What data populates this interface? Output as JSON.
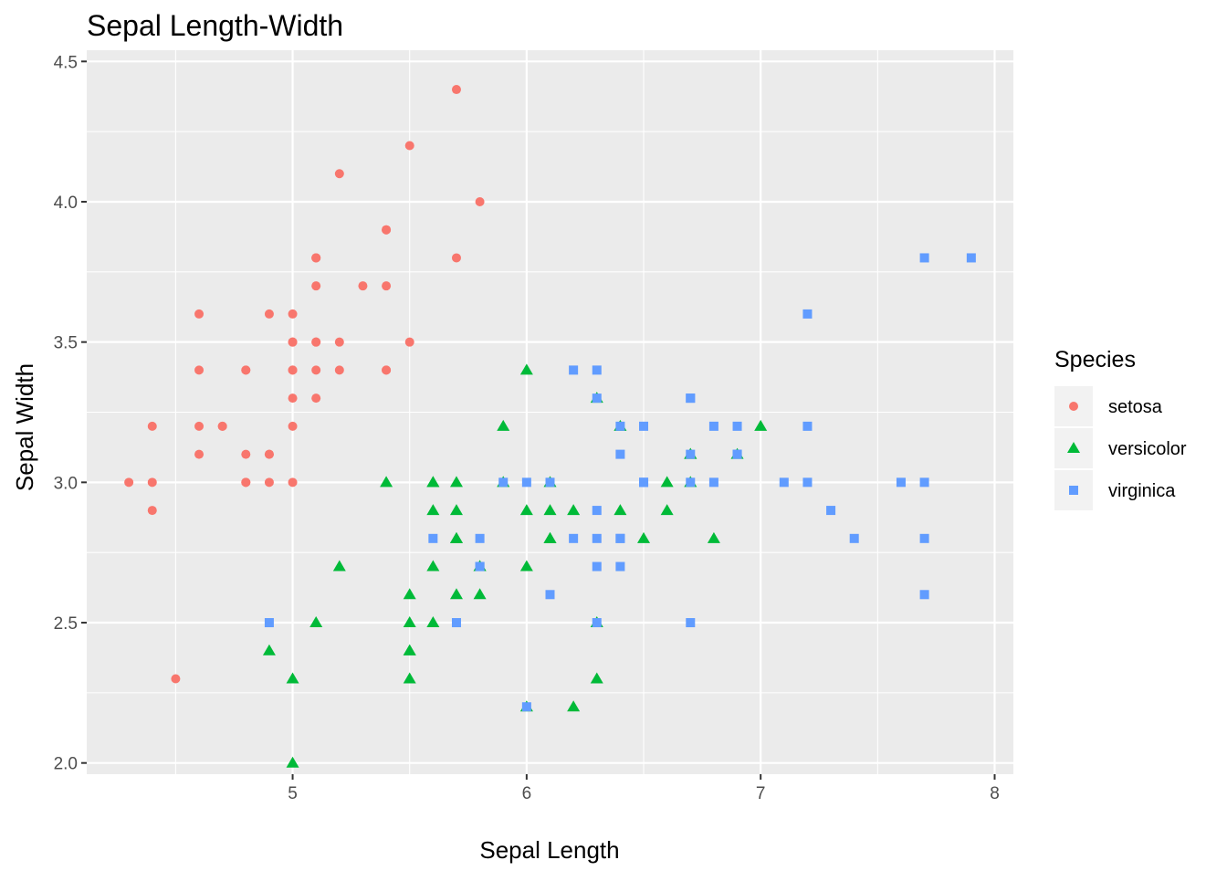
{
  "chart_data": {
    "type": "scatter",
    "title": "Sepal Length-Width",
    "xlabel": "Sepal Length",
    "ylabel": "Sepal Width",
    "xlim": [
      4.12,
      8.08
    ],
    "ylim": [
      1.96,
      4.54
    ],
    "xticks": [
      5,
      6,
      7,
      8
    ],
    "xtick_labels": [
      "5",
      "6",
      "7",
      "8"
    ],
    "yticks": [
      2.0,
      2.5,
      3.0,
      3.5,
      4.0,
      4.5
    ],
    "ytick_labels": [
      "2.0",
      "2.5",
      "3.0",
      "3.5",
      "4.0",
      "4.5"
    ],
    "grid": true,
    "background": "#EBEBEB",
    "legend": {
      "title": "Species",
      "placement": "right"
    },
    "series": [
      {
        "name": "setosa",
        "color": "#F8766D",
        "shape": "circle",
        "x": [
          5.1,
          4.9,
          4.7,
          4.6,
          5.0,
          5.4,
          4.6,
          5.0,
          4.4,
          4.9,
          5.4,
          4.8,
          4.8,
          4.3,
          5.8,
          5.7,
          5.4,
          5.1,
          5.7,
          5.1,
          5.4,
          5.1,
          4.6,
          5.1,
          4.8,
          5.0,
          5.0,
          5.2,
          5.2,
          4.7,
          4.8,
          5.4,
          5.2,
          5.5,
          4.9,
          5.0,
          5.5,
          4.9,
          4.4,
          5.1,
          5.0,
          4.5,
          4.4,
          5.0,
          5.1,
          4.8,
          5.1,
          4.6,
          5.3,
          5.0
        ],
        "y": [
          3.5,
          3.0,
          3.2,
          3.1,
          3.6,
          3.9,
          3.4,
          3.4,
          2.9,
          3.1,
          3.7,
          3.4,
          3.0,
          3.0,
          4.0,
          4.4,
          3.9,
          3.5,
          3.8,
          3.8,
          3.4,
          3.7,
          3.6,
          3.3,
          3.4,
          3.0,
          3.4,
          3.5,
          3.4,
          3.2,
          3.1,
          3.4,
          4.1,
          4.2,
          3.1,
          3.2,
          3.5,
          3.6,
          3.0,
          3.4,
          3.5,
          2.3,
          3.2,
          3.5,
          3.8,
          3.0,
          3.8,
          3.2,
          3.7,
          3.3
        ]
      },
      {
        "name": "versicolor",
        "color": "#00BA38",
        "shape": "triangle",
        "x": [
          7.0,
          6.4,
          6.9,
          5.5,
          6.5,
          5.7,
          6.3,
          4.9,
          6.6,
          5.2,
          5.0,
          5.9,
          6.0,
          6.1,
          5.6,
          6.7,
          5.6,
          5.8,
          6.2,
          5.6,
          5.9,
          6.1,
          6.3,
          6.1,
          6.4,
          6.6,
          6.8,
          6.7,
          6.0,
          5.7,
          5.5,
          5.5,
          5.8,
          6.0,
          5.4,
          6.0,
          6.7,
          6.3,
          5.6,
          5.5,
          5.5,
          6.1,
          5.8,
          5.0,
          5.6,
          5.7,
          5.7,
          6.2,
          5.1,
          5.7
        ],
        "y": [
          3.2,
          3.2,
          3.1,
          2.3,
          2.8,
          2.8,
          3.3,
          2.4,
          2.9,
          2.7,
          2.0,
          3.0,
          2.2,
          2.9,
          2.9,
          3.1,
          3.0,
          2.7,
          2.2,
          2.5,
          3.2,
          2.8,
          2.5,
          2.8,
          2.9,
          3.0,
          2.8,
          3.0,
          2.9,
          2.6,
          2.4,
          2.4,
          2.7,
          2.7,
          3.0,
          3.4,
          3.1,
          2.3,
          3.0,
          2.5,
          2.6,
          3.0,
          2.6,
          2.3,
          2.7,
          3.0,
          2.9,
          2.9,
          2.5,
          2.8
        ]
      },
      {
        "name": "virginica",
        "color": "#619CFF",
        "shape": "square",
        "x": [
          6.3,
          5.8,
          7.1,
          6.3,
          6.5,
          7.6,
          4.9,
          7.3,
          6.7,
          7.2,
          6.5,
          6.4,
          6.8,
          5.7,
          5.8,
          6.4,
          6.5,
          7.7,
          7.7,
          6.0,
          6.9,
          5.6,
          7.7,
          6.3,
          6.7,
          7.2,
          6.2,
          6.1,
          6.4,
          7.2,
          7.4,
          7.9,
          6.4,
          6.3,
          6.1,
          7.7,
          6.3,
          6.4,
          6.0,
          6.9,
          6.7,
          6.9,
          5.8,
          6.8,
          6.7,
          6.7,
          6.3,
          6.5,
          6.2,
          5.9
        ],
        "y": [
          3.3,
          2.7,
          3.0,
          2.9,
          3.0,
          3.0,
          2.5,
          2.9,
          2.5,
          3.6,
          3.2,
          2.7,
          3.0,
          2.5,
          2.8,
          3.2,
          3.0,
          3.8,
          2.6,
          2.2,
          3.2,
          2.8,
          2.8,
          2.7,
          3.3,
          3.2,
          2.8,
          3.0,
          2.8,
          3.0,
          2.8,
          3.8,
          2.8,
          2.8,
          2.6,
          3.0,
          3.4,
          3.1,
          3.0,
          3.1,
          3.1,
          3.1,
          2.7,
          3.2,
          3.3,
          3.0,
          2.5,
          3.0,
          3.4,
          3.0
        ]
      }
    ]
  }
}
